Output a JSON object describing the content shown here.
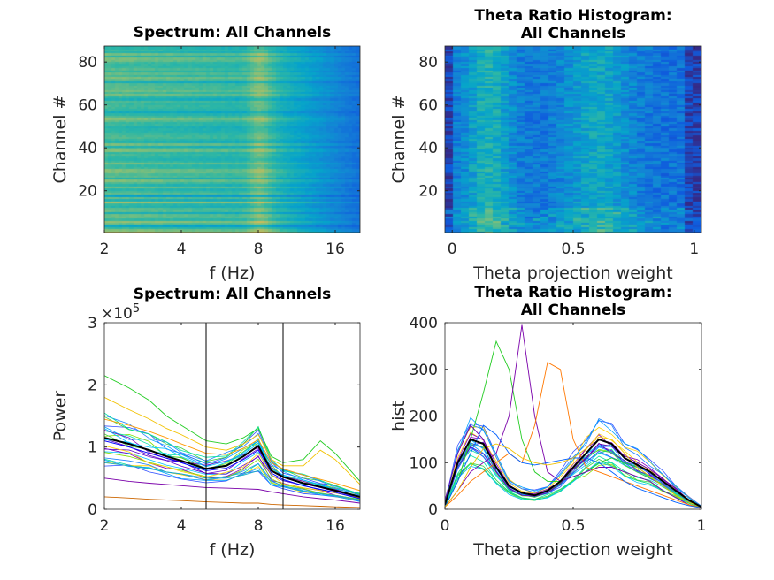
{
  "colormap": [
    "#352a87",
    "#0f5cdd",
    "#1481d6",
    "#06a4ca",
    "#2eb7a4",
    "#87bf77",
    "#d1bb59",
    "#fec832",
    "#f9fb0e"
  ],
  "chart_data": [
    {
      "type": "heatmap",
      "title": "Spectrum: All Channels",
      "xlabel": "f (Hz)",
      "ylabel": "Channel #",
      "xscale": "log",
      "xlim": [
        2,
        20
      ],
      "ylim": [
        0.5,
        87.5
      ],
      "xticks": [
        "2",
        "4",
        "8",
        "16"
      ],
      "xtick_values": [
        2,
        4,
        8,
        16
      ],
      "yticks": [
        "20",
        "40",
        "60",
        "80"
      ],
      "ytick_values": [
        20,
        40,
        60,
        80
      ],
      "channels": 87,
      "theta_peak_hz": 8
    },
    {
      "type": "heatmap",
      "title": "Theta Ratio Histogram: All Channels",
      "xlabel": "Theta projection weight",
      "ylabel": "Channel #",
      "xlim": [
        -0.03,
        1.03
      ],
      "ylim": [
        0.5,
        87.5
      ],
      "xticks": [
        "0",
        "0.5",
        "1"
      ],
      "xtick_values": [
        0,
        0.5,
        1
      ],
      "yticks": [
        "20",
        "40",
        "60",
        "80"
      ],
      "ytick_values": [
        20,
        40,
        60,
        80
      ],
      "channels": 87
    },
    {
      "type": "line",
      "title": "Spectrum: All Channels",
      "xlabel": "f (Hz)",
      "ylabel": "Power",
      "xscale": "log",
      "xlim": [
        2,
        20
      ],
      "ylim": [
        0,
        3
      ],
      "y_exponent": "×10",
      "y_exponent_power": "5",
      "xticks": [
        "2",
        "4",
        "8",
        "16"
      ],
      "xtick_values": [
        2,
        4,
        8,
        16
      ],
      "yticks": [
        "0",
        "1",
        "2",
        "3"
      ],
      "ytick_values": [
        0,
        1,
        2,
        3
      ],
      "vlines": [
        5,
        10
      ],
      "x": [
        2,
        2.5,
        3,
        3.5,
        4,
        5,
        6,
        7,
        8,
        9,
        10,
        12,
        14,
        16,
        20
      ],
      "mean_series": [
        1.15,
        1.05,
        0.95,
        0.85,
        0.78,
        0.65,
        0.7,
        0.85,
        1.02,
        0.62,
        0.52,
        0.42,
        0.36,
        0.3,
        0.2
      ],
      "series": [
        {
          "color": "#22cc22",
          "values": [
            2.15,
            1.95,
            1.75,
            1.5,
            1.35,
            1.1,
            1.05,
            1.15,
            1.3,
            0.85,
            0.75,
            0.8,
            1.1,
            0.9,
            0.45
          ]
        },
        {
          "color": "#f2c200",
          "values": [
            1.8,
            1.6,
            1.45,
            1.3,
            1.2,
            1.0,
            0.95,
            1.05,
            1.2,
            0.8,
            0.7,
            0.7,
            0.95,
            0.8,
            0.4
          ]
        },
        {
          "color": "#ff9900",
          "values": [
            1.45,
            1.35,
            1.25,
            1.15,
            1.05,
            0.9,
            0.88,
            0.98,
            1.12,
            0.75,
            0.65,
            0.55,
            0.48,
            0.42,
            0.3
          ]
        },
        {
          "color": "#0000ff",
          "values": [
            1.1,
            1.0,
            0.9,
            0.82,
            0.75,
            0.62,
            0.66,
            0.8,
            0.95,
            0.58,
            0.48,
            0.38,
            0.32,
            0.27,
            0.17
          ]
        },
        {
          "color": "#18b0c8",
          "values": [
            0.75,
            0.7,
            0.65,
            0.6,
            0.57,
            0.5,
            0.5,
            0.55,
            0.62,
            0.45,
            0.38,
            0.3,
            0.25,
            0.22,
            0.15
          ]
        },
        {
          "color": "#7a00aa",
          "values": [
            0.5,
            0.45,
            0.42,
            0.4,
            0.38,
            0.35,
            0.34,
            0.33,
            0.32,
            0.28,
            0.25,
            0.2,
            0.17,
            0.15,
            0.1
          ]
        },
        {
          "color": "#cc6600",
          "values": [
            0.2,
            0.18,
            0.16,
            0.15,
            0.14,
            0.12,
            0.11,
            0.1,
            0.1,
            0.08,
            0.07,
            0.06,
            0.05,
            0.04,
            0.03
          ]
        }
      ]
    },
    {
      "type": "line",
      "title": "Theta Ratio Histogram: All Channels",
      "xlabel": "Theta projection weight",
      "ylabel": "hist",
      "xlim": [
        0,
        1
      ],
      "ylim": [
        0,
        400
      ],
      "xticks": [
        "0",
        "0.5",
        "1"
      ],
      "xtick_values": [
        0,
        0.5,
        1
      ],
      "yticks": [
        "0",
        "100",
        "200",
        "300",
        "400"
      ],
      "ytick_values": [
        0,
        100,
        200,
        300,
        400
      ],
      "x": [
        0,
        0.05,
        0.1,
        0.15,
        0.2,
        0.25,
        0.3,
        0.35,
        0.4,
        0.45,
        0.5,
        0.55,
        0.6,
        0.65,
        0.7,
        0.75,
        0.8,
        0.85,
        0.9,
        0.95,
        1
      ],
      "mean_series": [
        10,
        100,
        150,
        140,
        90,
        50,
        35,
        30,
        40,
        60,
        90,
        120,
        150,
        140,
        110,
        95,
        80,
        60,
        40,
        20,
        5
      ],
      "series": [
        {
          "color": "#22cc22",
          "values": [
            5,
            60,
            150,
            250,
            360,
            300,
            150,
            80,
            60,
            60,
            70,
            80,
            100,
            110,
            100,
            90,
            70,
            50,
            30,
            15,
            5
          ]
        },
        {
          "color": "#7a00aa",
          "values": [
            5,
            40,
            80,
            100,
            120,
            200,
            395,
            200,
            80,
            60,
            70,
            80,
            90,
            90,
            80,
            70,
            60,
            40,
            25,
            10,
            3
          ]
        },
        {
          "color": "#ff7700",
          "values": [
            5,
            30,
            60,
            80,
            100,
            120,
            100,
            180,
            315,
            300,
            150,
            90,
            80,
            70,
            60,
            50,
            40,
            30,
            20,
            10,
            3
          ]
        },
        {
          "color": "#6a00b0",
          "values": [
            20,
            120,
            180,
            150,
            80,
            45,
            30,
            28,
            35,
            55,
            85,
            110,
            140,
            135,
            115,
            100,
            85,
            65,
            45,
            20,
            5
          ]
        },
        {
          "color": "#0060ff",
          "values": [
            5,
            60,
            120,
            180,
            160,
            120,
            100,
            95,
            100,
            105,
            110,
            110,
            100,
            80,
            60,
            45,
            35,
            25,
            15,
            8,
            3
          ]
        },
        {
          "color": "#f2c200",
          "values": [
            5,
            40,
            90,
            130,
            140,
            130,
            110,
            100,
            95,
            100,
            110,
            130,
            155,
            150,
            120,
            90,
            70,
            50,
            30,
            15,
            5
          ]
        }
      ]
    }
  ]
}
